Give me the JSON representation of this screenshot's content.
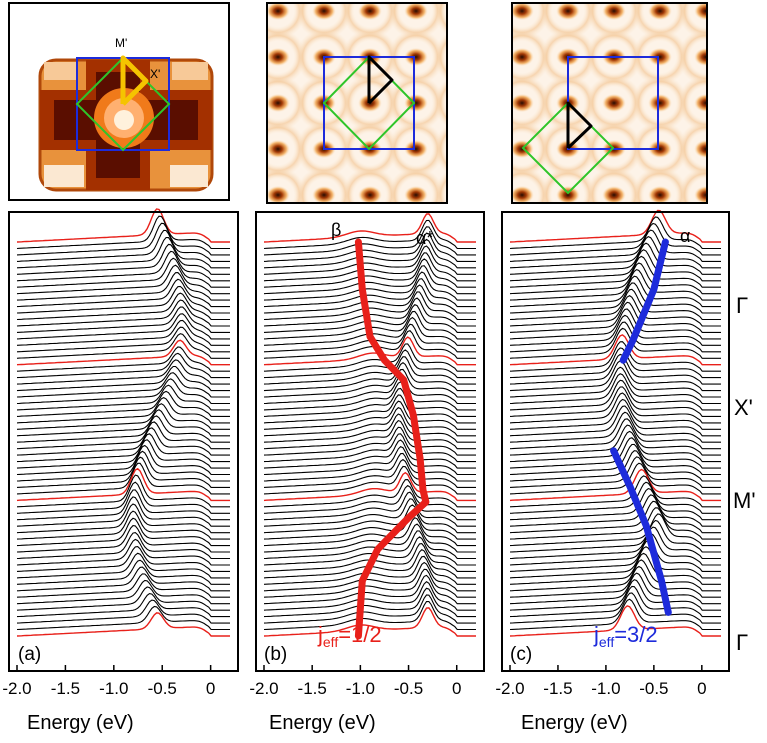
{
  "chart_data": {
    "type": "line",
    "figure_kind": "stacked ARPES energy distribution curves with Fermi-surface maps",
    "xlabel": "Energy (eV)",
    "x_ticks": [
      "-2.0",
      "-1.5",
      "-1.0",
      "-0.5",
      "0"
    ],
    "xlim": [
      -2.0,
      0.2
    ],
    "k_path_labels": [
      "Γ",
      "X'",
      "M'",
      "Γ"
    ],
    "panels": [
      {
        "label": "(a)",
        "inset_labels": [
          "M'",
          "X'"
        ],
        "annotation": "",
        "dispersion_curves": []
      },
      {
        "label": "(b)",
        "peak_labels": [
          "β",
          "α*"
        ],
        "annotation_main": "j",
        "annotation_sub": "eff",
        "annotation_rest": "=1/2",
        "annotation_color": "#e8201a",
        "dispersion_curves": [
          {
            "color": "#e8201a",
            "points": [
              [
                -1.02,
                0.0
              ],
              [
                -0.98,
                0.12
              ],
              [
                -0.9,
                0.24
              ],
              [
                -0.75,
                0.3
              ],
              [
                -0.55,
                0.35
              ],
              [
                -0.45,
                0.44
              ],
              [
                -0.38,
                0.55
              ],
              [
                -0.35,
                0.63
              ],
              [
                -0.32,
                0.66
              ],
              [
                -0.5,
                0.7
              ],
              [
                -0.82,
                0.78
              ],
              [
                -0.98,
                0.86
              ],
              [
                -1.02,
                1.0
              ]
            ]
          }
        ]
      },
      {
        "label": "(c)",
        "peak_labels": [
          "α"
        ],
        "annotation_main": "j",
        "annotation_sub": "eff",
        "annotation_rest": "=3/2",
        "annotation_color": "#1d2bdb",
        "dispersion_curves": [
          {
            "color": "#1d2bdb",
            "points": [
              [
                -0.38,
                0.0
              ],
              [
                -0.5,
                0.12
              ],
              [
                -0.72,
                0.25
              ],
              [
                -0.82,
                0.3
              ]
            ]
          },
          {
            "color": "#1d2bdb",
            "points": [
              [
                -0.92,
                0.53
              ],
              [
                -0.75,
                0.62
              ],
              [
                -0.58,
                0.72
              ],
              [
                -0.42,
                0.86
              ],
              [
                -0.35,
                0.94
              ]
            ]
          }
        ]
      }
    ],
    "curves_per_panel": 62,
    "highlight_curve_indices": [
      0,
      19,
      40,
      61
    ],
    "colors": {
      "curve": "#000000",
      "highlight": "#e8201a",
      "bz_small": "#1d2bdb",
      "bz_large": "#2fc52a",
      "path_a": "#f5c400",
      "path_bc": "#000000"
    }
  }
}
